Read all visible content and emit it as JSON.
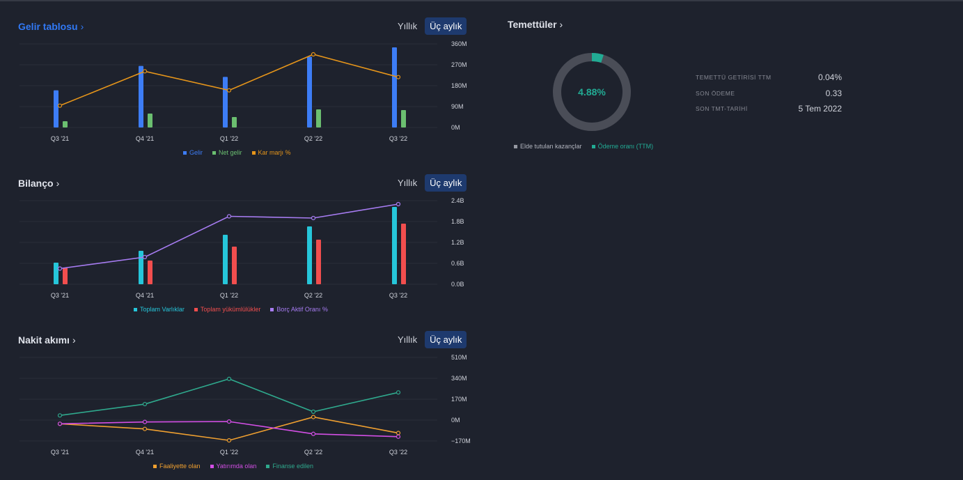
{
  "colors": {
    "revenue": "#3d7df6",
    "net_income": "#6bbf70",
    "margin": "#e6951a",
    "assets": "#26c6da",
    "liabilities": "#f24e4e",
    "debt_ratio": "#a77cf2",
    "operating": "#f0a030",
    "investing": "#d34fe5",
    "financing": "#2fa98d",
    "dividend_paid": "#22ab94",
    "retained": "#4a4d57"
  },
  "income": {
    "title": "Gelir tablosu",
    "toggle": {
      "annual": "Yıllık",
      "quarterly": "Üç aylık"
    }
  },
  "balance": {
    "title": "Bilanço",
    "toggle": {
      "annual": "Yıllık",
      "quarterly": "Üç aylık"
    }
  },
  "cashflow": {
    "title": "Nakit akımı",
    "toggle": {
      "annual": "Yıllık",
      "quarterly": "Üç aylık"
    }
  },
  "dividends": {
    "title": "Temettüler",
    "payout_label": "4.88%",
    "payout_fraction": 0.0488,
    "stats": [
      {
        "key": "TEMETTÜ GETİRİSİ TTM",
        "value": "0.04%"
      },
      {
        "key": "SON ÖDEME",
        "value": "0.33"
      },
      {
        "key": "SON TMT-TARİHİ",
        "value": "5 Tem 2022"
      }
    ],
    "legend": {
      "retained": "Elde tutulan kazançlar",
      "payout": "Ödeme oranı (TTM)"
    }
  },
  "chart_data": [
    {
      "type": "bar",
      "categories": [
        "Q3 '21",
        "Q4 '21",
        "Q1 '22",
        "Q2 '22",
        "Q3 '22"
      ],
      "yticks": [
        "360M",
        "270M",
        "180M",
        "90M",
        "0M"
      ],
      "ylim": [
        0,
        360
      ],
      "series": [
        {
          "name": "Gelir",
          "kind": "bar",
          "values": [
            160,
            265,
            218,
            305,
            345
          ]
        },
        {
          "name": "Net gelir",
          "kind": "bar",
          "values": [
            27,
            60,
            45,
            78,
            75
          ]
        },
        {
          "name": "Kar marjı %",
          "kind": "line",
          "values": [
            94,
            242,
            160,
            315,
            217
          ]
        }
      ]
    },
    {
      "type": "bar",
      "categories": [
        "Q3 '21",
        "Q4 '21",
        "Q1 '22",
        "Q2 '22",
        "Q3 '22"
      ],
      "yticks": [
        "2.4B",
        "1.8B",
        "1.2B",
        "0.6B",
        "0.0B"
      ],
      "ylim": [
        0,
        2.4
      ],
      "series": [
        {
          "name": "Toplam Varlıklar",
          "kind": "bar",
          "values": [
            0.62,
            0.96,
            1.42,
            1.66,
            2.22
          ]
        },
        {
          "name": "Toplam yükümlülükler",
          "kind": "bar",
          "values": [
            0.48,
            0.68,
            1.08,
            1.28,
            1.74
          ]
        },
        {
          "name": "Borç Aktif Oranı %",
          "kind": "line",
          "values": [
            0.45,
            0.78,
            1.95,
            1.9,
            2.3
          ]
        }
      ]
    },
    {
      "type": "line",
      "categories": [
        "Q3 '21",
        "Q4 '21",
        "Q1 '22",
        "Q2 '22",
        "Q3 '22"
      ],
      "yticks": [
        "510M",
        "340M",
        "170M",
        "0M",
        "−170M"
      ],
      "ylim": [
        -170,
        510
      ],
      "series": [
        {
          "name": "Faaliyette olan",
          "kind": "line",
          "values": [
            -30,
            -72,
            -165,
            25,
            -105
          ]
        },
        {
          "name": "Yatırımda olan",
          "kind": "line",
          "values": [
            -30,
            -15,
            -12,
            -112,
            -135
          ]
        },
        {
          "name": "Finanse edilen",
          "kind": "line",
          "values": [
            38,
            130,
            335,
            68,
            225
          ]
        }
      ]
    }
  ]
}
